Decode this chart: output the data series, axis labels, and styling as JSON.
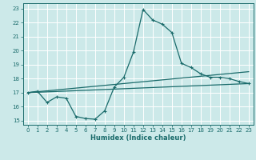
{
  "xlabel": "Humidex (Indice chaleur)",
  "bg_color": "#cce9e9",
  "line_color": "#1a6b6b",
  "grid_color": "#b8d8d8",
  "xlim": [
    -0.5,
    23.5
  ],
  "ylim": [
    14.7,
    23.4
  ],
  "xticks": [
    0,
    1,
    2,
    3,
    4,
    5,
    6,
    7,
    8,
    9,
    10,
    11,
    12,
    13,
    14,
    15,
    16,
    17,
    18,
    19,
    20,
    21,
    22,
    23
  ],
  "yticks": [
    15,
    16,
    17,
    18,
    19,
    20,
    21,
    22,
    23
  ],
  "curve1_x": [
    0,
    1,
    2,
    3,
    4,
    5,
    6,
    7,
    8,
    9,
    10,
    11,
    12,
    13,
    14,
    15,
    16,
    17,
    18,
    19,
    20,
    21,
    22,
    23
  ],
  "curve1_y": [
    17.0,
    17.1,
    16.3,
    16.7,
    16.6,
    15.3,
    15.15,
    15.1,
    15.7,
    17.4,
    18.1,
    19.9,
    22.95,
    22.2,
    21.9,
    21.3,
    19.1,
    18.8,
    18.35,
    18.1,
    18.1,
    18.0,
    17.8,
    17.65
  ],
  "curve2_x": [
    0,
    23
  ],
  "curve2_y": [
    17.0,
    18.5
  ],
  "curve3_x": [
    0,
    23
  ],
  "curve3_y": [
    17.0,
    17.65
  ]
}
